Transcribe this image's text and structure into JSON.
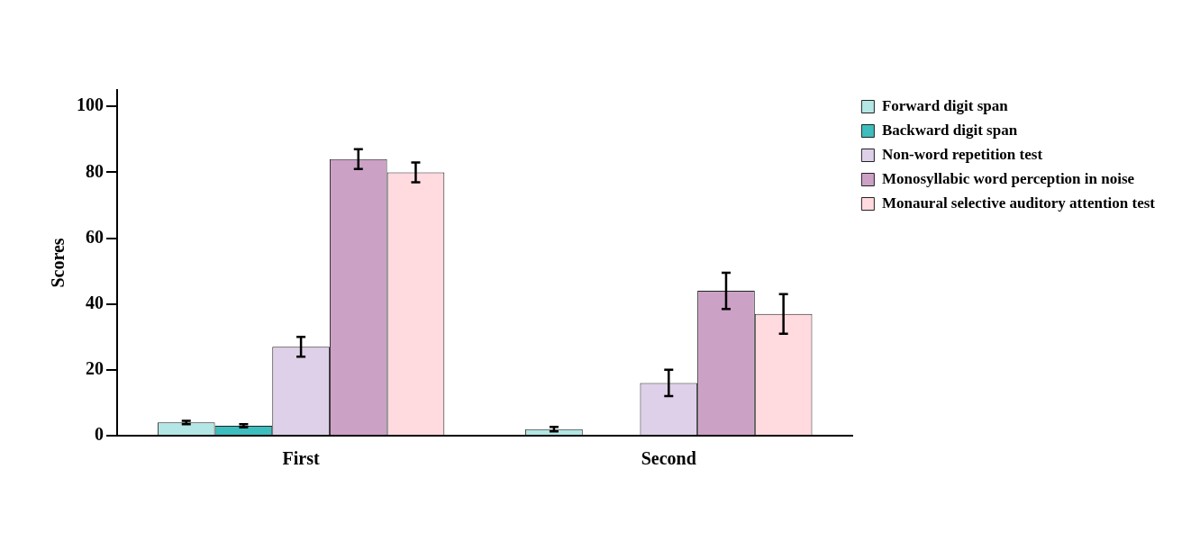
{
  "chart_data": {
    "type": "bar",
    "ylabel": "Scores",
    "categories": [
      "First",
      "Second"
    ],
    "series": [
      {
        "name": "Forward digit span",
        "color": "#b3e6e4",
        "values": [
          4,
          2
        ],
        "errors": [
          0.5,
          0.7
        ]
      },
      {
        "name": "Backward digit span",
        "color": "#3dbdbd",
        "values": [
          3,
          0
        ],
        "errors": [
          0.5,
          null
        ]
      },
      {
        "name": "Non-word repetition test",
        "color": "#ddd0e8",
        "values": [
          27,
          16
        ],
        "errors": [
          3,
          4
        ]
      },
      {
        "name": "Monosyllabic word perception in noise",
        "color": "#cca1c6",
        "values": [
          84,
          44
        ],
        "errors": [
          3,
          5.5
        ]
      },
      {
        "name": "Monaural selective auditory attention test",
        "color": "#ffdadf",
        "values": [
          80,
          37
        ],
        "errors": [
          3,
          6
        ]
      }
    ],
    "ylim": [
      0,
      105
    ],
    "yticks": [
      0,
      20,
      40,
      60,
      80,
      100
    ],
    "grid": false,
    "legend": "top right"
  }
}
